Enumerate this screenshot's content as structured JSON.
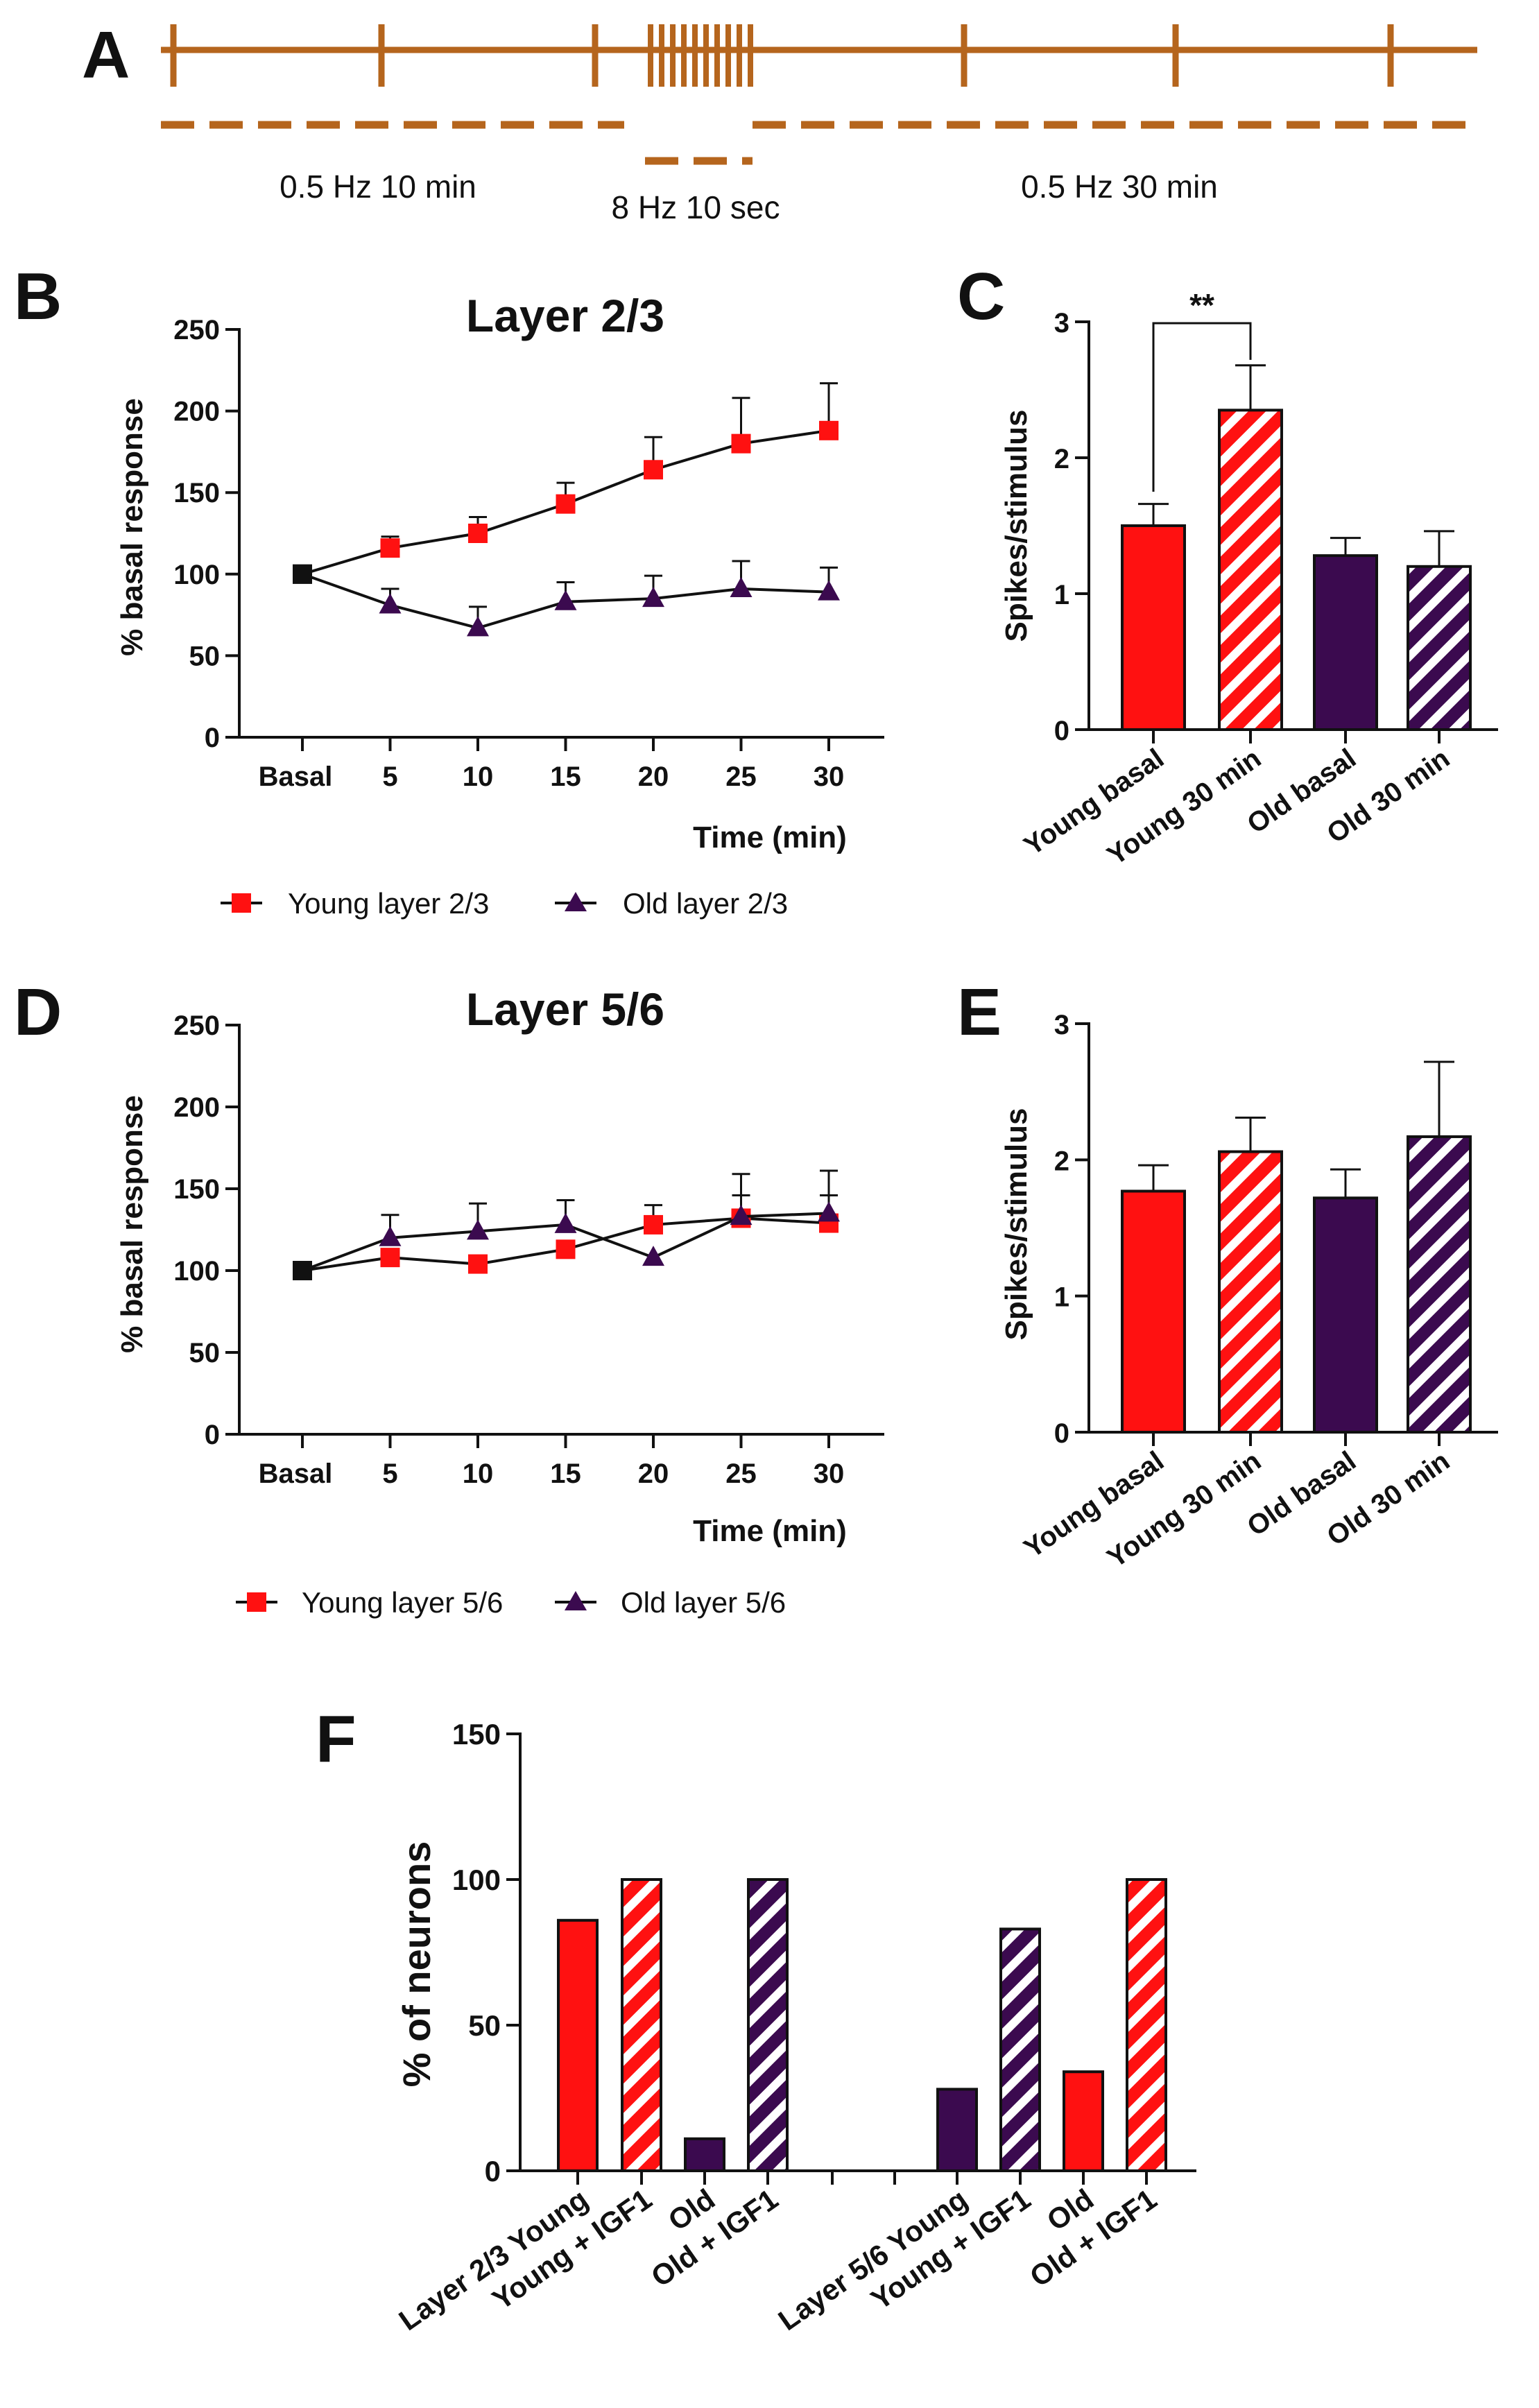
{
  "colors": {
    "protocol": "#B5651D",
    "young": "#FF1111",
    "old": "#3B0A4F",
    "line": "#111111",
    "hatch_stripe": "#ffffff"
  },
  "panel_letters": {
    "a": "A",
    "b": "B",
    "c": "C",
    "d": "D",
    "e": "E",
    "f": "F"
  },
  "protocol": {
    "label_left": "0.5 Hz 10 min",
    "label_mid": "8 Hz 10 sec",
    "label_right": "0.5 Hz 30 min"
  },
  "chart_data": [
    {
      "id": "B",
      "type": "line",
      "title": "Layer 2/3",
      "xlabel": "Time (min)",
      "ylabel": "% basal response",
      "categories": [
        "Basal",
        "5",
        "10",
        "15",
        "20",
        "25",
        "30"
      ],
      "ylim": [
        0,
        250
      ],
      "yticks": [
        0,
        50,
        100,
        150,
        200,
        250
      ],
      "series": [
        {
          "name": "Young layer 2/3",
          "marker": "square",
          "values": [
            100,
            116,
            125,
            143,
            164,
            180,
            188
          ],
          "errors": [
            0,
            7,
            10,
            13,
            20,
            28,
            29
          ]
        },
        {
          "name": "Old layer 2/3",
          "marker": "triangle",
          "values": [
            100,
            81,
            67,
            83,
            85,
            91,
            89
          ],
          "errors": [
            0,
            10,
            13,
            12,
            14,
            17,
            15
          ]
        }
      ]
    },
    {
      "id": "C",
      "type": "bar",
      "ylabel": "Spikes/stimulus",
      "categories": [
        "Young basal",
        "Young 30 min",
        "Old basal",
        "Old 30 min"
      ],
      "values": [
        1.5,
        2.35,
        1.28,
        1.2
      ],
      "errors": [
        0.16,
        0.33,
        0.13,
        0.26
      ],
      "hatched": [
        false,
        true,
        false,
        true
      ],
      "group": [
        "young",
        "young",
        "old",
        "old"
      ],
      "ylim": [
        0,
        3
      ],
      "yticks": [
        0,
        1,
        2,
        3
      ],
      "significance": {
        "from": 0,
        "to": 1,
        "label": "**"
      }
    },
    {
      "id": "D",
      "type": "line",
      "title": "Layer 5/6",
      "xlabel": "Time (min)",
      "ylabel": "% basal response",
      "categories": [
        "Basal",
        "5",
        "10",
        "15",
        "20",
        "25",
        "30"
      ],
      "ylim": [
        0,
        250
      ],
      "yticks": [
        0,
        50,
        100,
        150,
        200,
        250
      ],
      "series": [
        {
          "name": "Young layer 5/6",
          "marker": "square",
          "values": [
            100,
            108,
            104,
            113,
            128,
            132,
            129
          ],
          "errors": [
            0,
            4,
            5,
            4,
            12,
            14,
            17
          ]
        },
        {
          "name": "Old layer 5/6",
          "marker": "triangle",
          "values": [
            100,
            120,
            124,
            128,
            108,
            133,
            135
          ],
          "errors": [
            0,
            14,
            17,
            15,
            0,
            26,
            26
          ]
        }
      ]
    },
    {
      "id": "E",
      "type": "bar",
      "ylabel": "Spikes/stimulus",
      "categories": [
        "Young basal",
        "Young 30 min",
        "Old basal",
        "Old 30 min"
      ],
      "values": [
        1.77,
        2.06,
        1.72,
        2.17
      ],
      "errors": [
        0.19,
        0.25,
        0.21,
        0.55
      ],
      "hatched": [
        false,
        true,
        false,
        true
      ],
      "group": [
        "young",
        "young",
        "old",
        "old"
      ],
      "ylim": [
        0,
        3
      ],
      "yticks": [
        0,
        1,
        2,
        3
      ]
    },
    {
      "id": "F",
      "type": "bar",
      "ylabel": "% of neurons",
      "categories": [
        "Layer 2/3 Young",
        "Young + IGF1",
        "Old",
        "Old + IGF1",
        "Layer 5/6 Young",
        "Young + IGF1",
        "Old",
        "Old + IGF1"
      ],
      "values": [
        86,
        100,
        11,
        100,
        28,
        83,
        34,
        100
      ],
      "hatched": [
        false,
        true,
        false,
        true,
        false,
        true,
        false,
        true
      ],
      "group": [
        "young",
        "young",
        "old",
        "old",
        "old",
        "old",
        "young",
        "young"
      ],
      "ylim": [
        0,
        150
      ],
      "yticks": [
        0,
        50,
        100,
        150
      ]
    }
  ]
}
